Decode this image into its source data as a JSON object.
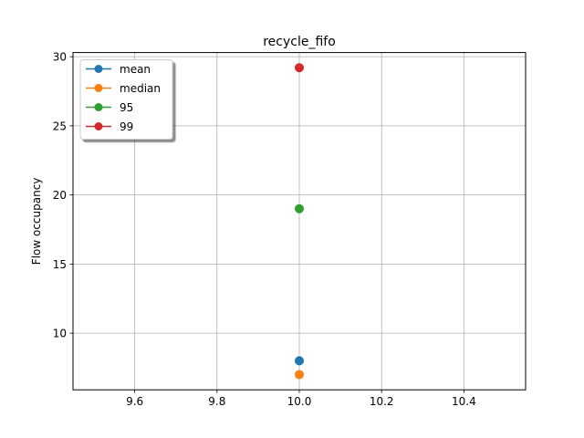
{
  "chart_data": {
    "type": "line",
    "title": "recycle_fifo",
    "xlabel": "",
    "ylabel": "Flow occupancy",
    "xlim": [
      9.45,
      10.55
    ],
    "ylim": [
      5.9,
      30.3
    ],
    "x_ticks": [
      9.6,
      9.8,
      10.0,
      10.2,
      10.4
    ],
    "x_tick_labels": [
      "9.6",
      "9.8",
      "10.0",
      "10.2",
      "10.4"
    ],
    "y_ticks": [
      10,
      15,
      20,
      25,
      30
    ],
    "y_tick_labels": [
      "10",
      "15",
      "20",
      "25",
      "30"
    ],
    "grid": true,
    "legend_position": "top-left",
    "series": [
      {
        "name": "mean",
        "color": "#1f77b4",
        "x": [
          10.0
        ],
        "y": [
          8.0
        ]
      },
      {
        "name": "median",
        "color": "#ff7f0e",
        "x": [
          10.0
        ],
        "y": [
          7.0
        ]
      },
      {
        "name": "95",
        "color": "#2ca02c",
        "x": [
          10.0
        ],
        "y": [
          19.0
        ]
      },
      {
        "name": "99",
        "color": "#d62728",
        "x": [
          10.0
        ],
        "y": [
          29.2
        ]
      }
    ]
  }
}
